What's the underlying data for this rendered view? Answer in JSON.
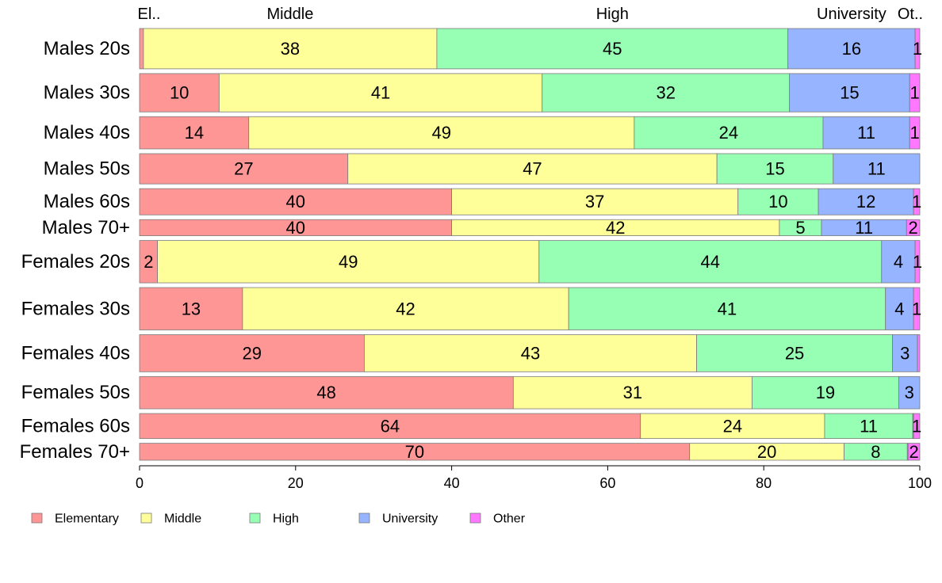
{
  "chart_data": {
    "type": "bar",
    "orientation": "horizontal",
    "stacked": true,
    "title": "",
    "xlabel": "",
    "ylabel": "",
    "xlim": [
      0,
      100
    ],
    "x_ticks": [
      "0",
      "20",
      "40",
      "60",
      "80",
      "100"
    ],
    "grid": false,
    "legend_position": "bottom-left",
    "categories": [
      "Males 20s",
      "Males 30s",
      "Males 40s",
      "Males 50s",
      "Males 60s",
      "Males 70+",
      "Females 20s",
      "Females 30s",
      "Females 40s",
      "Females 50s",
      "Females 60s",
      "Females 70+"
    ],
    "category_weights": [
      1.0,
      0.95,
      0.8,
      0.75,
      0.65,
      0.4,
      1.05,
      1.05,
      0.92,
      0.8,
      0.62,
      0.42
    ],
    "series": [
      {
        "name": "Elementary",
        "color": "#ff9696",
        "values": [
          0.5,
          10.2,
          14,
          26.7,
          40,
          40,
          2.3,
          13.2,
          28.8,
          47.9,
          64.2,
          70.5
        ]
      },
      {
        "name": "Middle",
        "color": "#ffff99",
        "values": [
          37.6,
          41.4,
          49.4,
          47.3,
          36.7,
          42,
          48.9,
          41.8,
          42.6,
          30.6,
          23.6,
          19.8
        ]
      },
      {
        "name": "High",
        "color": "#96ffb4",
        "values": [
          45,
          31.7,
          24.2,
          14.9,
          10.3,
          5.4,
          43.9,
          40.6,
          25.1,
          18.8,
          11.3,
          8.1
        ]
      },
      {
        "name": "University",
        "color": "#96b4ff",
        "values": [
          16.3,
          15.4,
          11.1,
          11.1,
          12.2,
          10.9,
          4.3,
          3.6,
          3.2,
          2.7,
          0.1,
          0.1
        ]
      },
      {
        "name": "Other",
        "color": "#ff78ff",
        "values": [
          0.6,
          1.3,
          1.3,
          0,
          0.8,
          1.7,
          0.6,
          0.8,
          0.3,
          0,
          0.8,
          1.5
        ]
      }
    ],
    "segment_labels": [
      [
        "",
        "38",
        "45",
        "16",
        "1"
      ],
      [
        "10",
        "41",
        "32",
        "15",
        "1"
      ],
      [
        "14",
        "49",
        "24",
        "11",
        "1"
      ],
      [
        "27",
        "47",
        "15",
        "11",
        ""
      ],
      [
        "40",
        "37",
        "10",
        "12",
        "1"
      ],
      [
        "40",
        "42",
        "5",
        "11",
        "2"
      ],
      [
        "2",
        "49",
        "44",
        "4",
        "1"
      ],
      [
        "13",
        "42",
        "41",
        "4",
        "1"
      ],
      [
        "29",
        "43",
        "25",
        "3",
        ""
      ],
      [
        "48",
        "31",
        "19",
        "3",
        ""
      ],
      [
        "64",
        "24",
        "11",
        "",
        "1"
      ],
      [
        "70",
        "20",
        "8",
        "",
        "2"
      ]
    ],
    "top_labels": [
      "El..",
      "Middle",
      "High",
      "University",
      "Ot.."
    ],
    "legend": [
      "Elementary",
      "Middle",
      "High",
      "University",
      "Other"
    ]
  }
}
